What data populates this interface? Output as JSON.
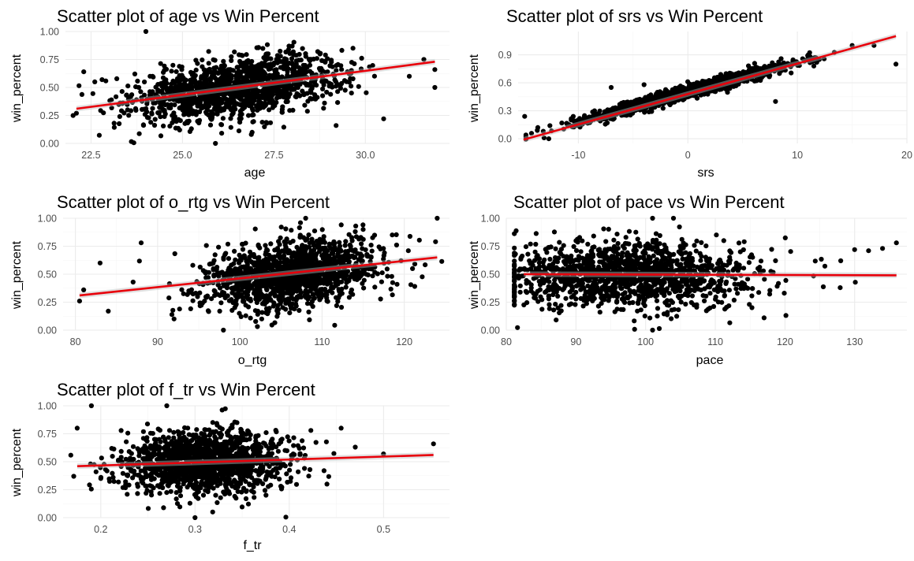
{
  "colors": {
    "points": "#000000",
    "fit_line": "#e8000b",
    "background": "#ffffff"
  },
  "chart_data": [
    {
      "type": "scatter",
      "title": "Scatter plot of age vs Win Percent",
      "xlabel": "age",
      "ylabel": "win_percent",
      "xlim": [
        21.8,
        32.3
      ],
      "ylim": [
        0,
        1.0
      ],
      "xticks": [
        22.5,
        25.0,
        27.5,
        30.0
      ],
      "xtick_labels": [
        "22.5",
        "25.0",
        "27.5",
        "30.0"
      ],
      "yticks": [
        0,
        0.25,
        0.5,
        0.75,
        1.0
      ],
      "ytick_labels": [
        "0.00",
        "0.25",
        "0.50",
        "0.75",
        "1.00"
      ],
      "cloud": {
        "x_mean": 26.5,
        "x_sd": 1.45,
        "slope": 0.043,
        "intercept": -0.64,
        "resid_sd": 0.13,
        "n": 1400
      },
      "points": [
        [
          22.1,
          0.27
        ],
        [
          22.3,
          0.64
        ],
        [
          24.0,
          1.0
        ],
        [
          31.9,
          0.5
        ],
        [
          31.9,
          0.66
        ],
        [
          31.6,
          0.75
        ],
        [
          25.9,
          0.0
        ],
        [
          29.2,
          0.16
        ],
        [
          30.5,
          0.22
        ],
        [
          23.5,
          0.3
        ],
        [
          22.8,
          0.57
        ],
        [
          31.2,
          0.6
        ]
      ],
      "fit": {
        "x": [
          22.1,
          31.9
        ],
        "y": [
          0.31,
          0.73
        ]
      },
      "grid": true,
      "legend": "none"
    },
    {
      "type": "scatter",
      "title": "Scatter plot of srs vs Win Percent",
      "xlabel": "srs",
      "ylabel": "win_percent",
      "xlim": [
        -15.5,
        20.0
      ],
      "ylim": [
        -0.05,
        1.15
      ],
      "xticks": [
        -10,
        0,
        10,
        20
      ],
      "xtick_labels": [
        "-10",
        "0",
        "10",
        "20"
      ],
      "yticks": [
        0,
        0.3,
        0.6,
        0.9
      ],
      "ytick_labels": [
        "0.0",
        "0.3",
        "0.6",
        "0.9"
      ],
      "cloud": {
        "x_mean": 0.0,
        "x_sd": 4.6,
        "slope": 0.032,
        "intercept": 0.5,
        "resid_sd": 0.035,
        "n": 1400
      },
      "points": [
        [
          -14.9,
          0.24
        ],
        [
          -13.7,
          0.12
        ],
        [
          -13.2,
          0.08
        ],
        [
          -12.7,
          0.0
        ],
        [
          -12.6,
          0.14
        ],
        [
          19.0,
          0.8
        ],
        [
          17.0,
          1.0
        ],
        [
          15.0,
          1.0
        ],
        [
          -7.0,
          0.55
        ],
        [
          -4.0,
          0.58
        ],
        [
          8.0,
          0.4
        ],
        [
          11.0,
          0.9
        ],
        [
          11.5,
          0.78
        ],
        [
          12.0,
          0.85
        ]
      ],
      "fit": {
        "x": [
          -15.0,
          19.0
        ],
        "y": [
          -0.01,
          1.1
        ]
      },
      "grid": true,
      "legend": "none"
    },
    {
      "type": "scatter",
      "title": "Scatter plot of o_rtg vs Win Percent",
      "xlabel": "o_rtg",
      "ylabel": "win_percent",
      "xlim": [
        78.5,
        125.5
      ],
      "ylim": [
        0,
        1.0
      ],
      "xticks": [
        80,
        90,
        100,
        110,
        120
      ],
      "xtick_labels": [
        "80",
        "90",
        "100",
        "110",
        "120"
      ],
      "yticks": [
        0,
        0.25,
        0.5,
        0.75,
        1.0
      ],
      "ytick_labels": [
        "0.00",
        "0.25",
        "0.50",
        "0.75",
        "1.00"
      ],
      "cloud": {
        "x_mean": 106.0,
        "x_sd": 5.6,
        "slope": 0.008,
        "intercept": -0.35,
        "resid_sd": 0.15,
        "n": 1400
      },
      "points": [
        [
          80.5,
          0.26
        ],
        [
          81.0,
          0.36
        ],
        [
          84.0,
          0.17
        ],
        [
          98.0,
          0.0
        ],
        [
          108.0,
          1.0
        ],
        [
          124.0,
          1.0
        ],
        [
          123.8,
          0.79
        ],
        [
          121.0,
          0.55
        ],
        [
          115.0,
          0.9
        ],
        [
          88.0,
          0.78
        ],
        [
          92.0,
          0.1
        ],
        [
          83.0,
          0.6
        ]
      ],
      "fit": {
        "x": [
          80.5,
          124.0
        ],
        "y": [
          0.31,
          0.65
        ]
      },
      "grid": true,
      "legend": "none"
    },
    {
      "type": "scatter",
      "title": "Scatter plot of pace vs Win Percent",
      "xlabel": "pace",
      "ylabel": "win_percent",
      "xlim": [
        80.0,
        137.5
      ],
      "ylim": [
        0,
        1.0
      ],
      "xticks": [
        80,
        90,
        100,
        110,
        120,
        130
      ],
      "xtick_labels": [
        "80",
        "90",
        "100",
        "110",
        "120",
        "130"
      ],
      "yticks": [
        0,
        0.25,
        0.5,
        0.75,
        1.0
      ],
      "ytick_labels": [
        "0.00",
        "0.25",
        "0.50",
        "0.75",
        "1.00"
      ],
      "cloud": {
        "x_mean": 98.0,
        "x_sd": 9.0,
        "slope": 0.0,
        "intercept": 0.49,
        "resid_sd": 0.15,
        "n": 1400
      },
      "points": [
        [
          82.6,
          0.55
        ],
        [
          101.0,
          1.0
        ],
        [
          104.0,
          1.0
        ],
        [
          101.0,
          0.0
        ],
        [
          136.0,
          0.78
        ],
        [
          134.0,
          0.73
        ],
        [
          132.0,
          0.71
        ],
        [
          130.0,
          0.72
        ],
        [
          117.0,
          0.11
        ],
        [
          84.0,
          0.29
        ],
        [
          128.0,
          0.62
        ]
      ],
      "fit": {
        "x": [
          82.5,
          136.0
        ],
        "y": [
          0.5,
          0.49
        ]
      },
      "grid": true,
      "legend": "none"
    },
    {
      "type": "scatter",
      "title": "Scatter plot of f_tr vs Win Percent",
      "xlabel": "f_tr",
      "ylabel": "win_percent",
      "xlim": [
        0.16,
        0.57
      ],
      "ylim": [
        0,
        1.0
      ],
      "xticks": [
        0.2,
        0.3,
        0.4,
        0.5
      ],
      "xtick_labels": [
        "0.2",
        "0.3",
        "0.4",
        "0.5"
      ],
      "yticks": [
        0,
        0.25,
        0.5,
        0.75,
        1.0
      ],
      "ytick_labels": [
        "0.00",
        "0.25",
        "0.50",
        "0.75",
        "1.00"
      ],
      "cloud": {
        "x_mean": 0.31,
        "x_sd": 0.045,
        "slope": 0.25,
        "intercept": 0.42,
        "resid_sd": 0.14,
        "n": 1400
      },
      "points": [
        [
          0.175,
          0.8
        ],
        [
          0.19,
          1.0
        ],
        [
          0.27,
          1.0
        ],
        [
          0.3,
          0.0
        ],
        [
          0.553,
          0.66
        ],
        [
          0.5,
          0.57
        ],
        [
          0.47,
          0.63
        ],
        [
          0.455,
          0.8
        ],
        [
          0.44,
          0.3
        ],
        [
          0.195,
          0.41
        ],
        [
          0.2,
          0.35
        ]
      ],
      "fit": {
        "x": [
          0.175,
          0.553
        ],
        "y": [
          0.46,
          0.56
        ]
      },
      "grid": true,
      "legend": "none"
    }
  ]
}
